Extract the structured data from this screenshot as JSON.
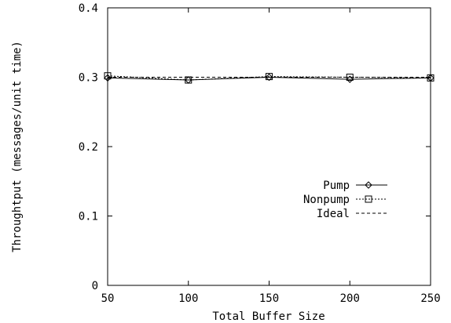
{
  "chart_data": {
    "type": "line",
    "title": "",
    "xlabel": "Total Buffer Size",
    "ylabel": "Throughtput (messages/unit time)",
    "xlim": [
      50,
      250
    ],
    "ylim": [
      0,
      0.4
    ],
    "x_ticks": [
      50,
      100,
      150,
      200,
      250
    ],
    "x_tick_labels": [
      "50",
      "100",
      "150",
      "200",
      "250"
    ],
    "y_ticks": [
      0,
      0.1,
      0.2,
      0.3,
      0.4
    ],
    "y_tick_labels": [
      "0",
      "0.1",
      "0.2",
      "0.3",
      "0.4"
    ],
    "grid": false,
    "legend_position": "right",
    "x": [
      50,
      100,
      150,
      200,
      250
    ],
    "series": [
      {
        "name": "Pump",
        "values": [
          0.299,
          0.296,
          0.3,
          0.297,
          0.299
        ],
        "marker": "diamond",
        "line": "solid"
      },
      {
        "name": "Nonpump",
        "values": [
          0.302,
          0.296,
          0.301,
          0.3,
          0.299
        ],
        "marker": "square",
        "line": "dotted"
      },
      {
        "name": "Ideal",
        "values": [
          0.3,
          0.3,
          0.3,
          0.3,
          0.3
        ],
        "marker": "none",
        "line": "dashed"
      }
    ],
    "colors": {
      "line": "#000000",
      "background": "#ffffff"
    }
  }
}
